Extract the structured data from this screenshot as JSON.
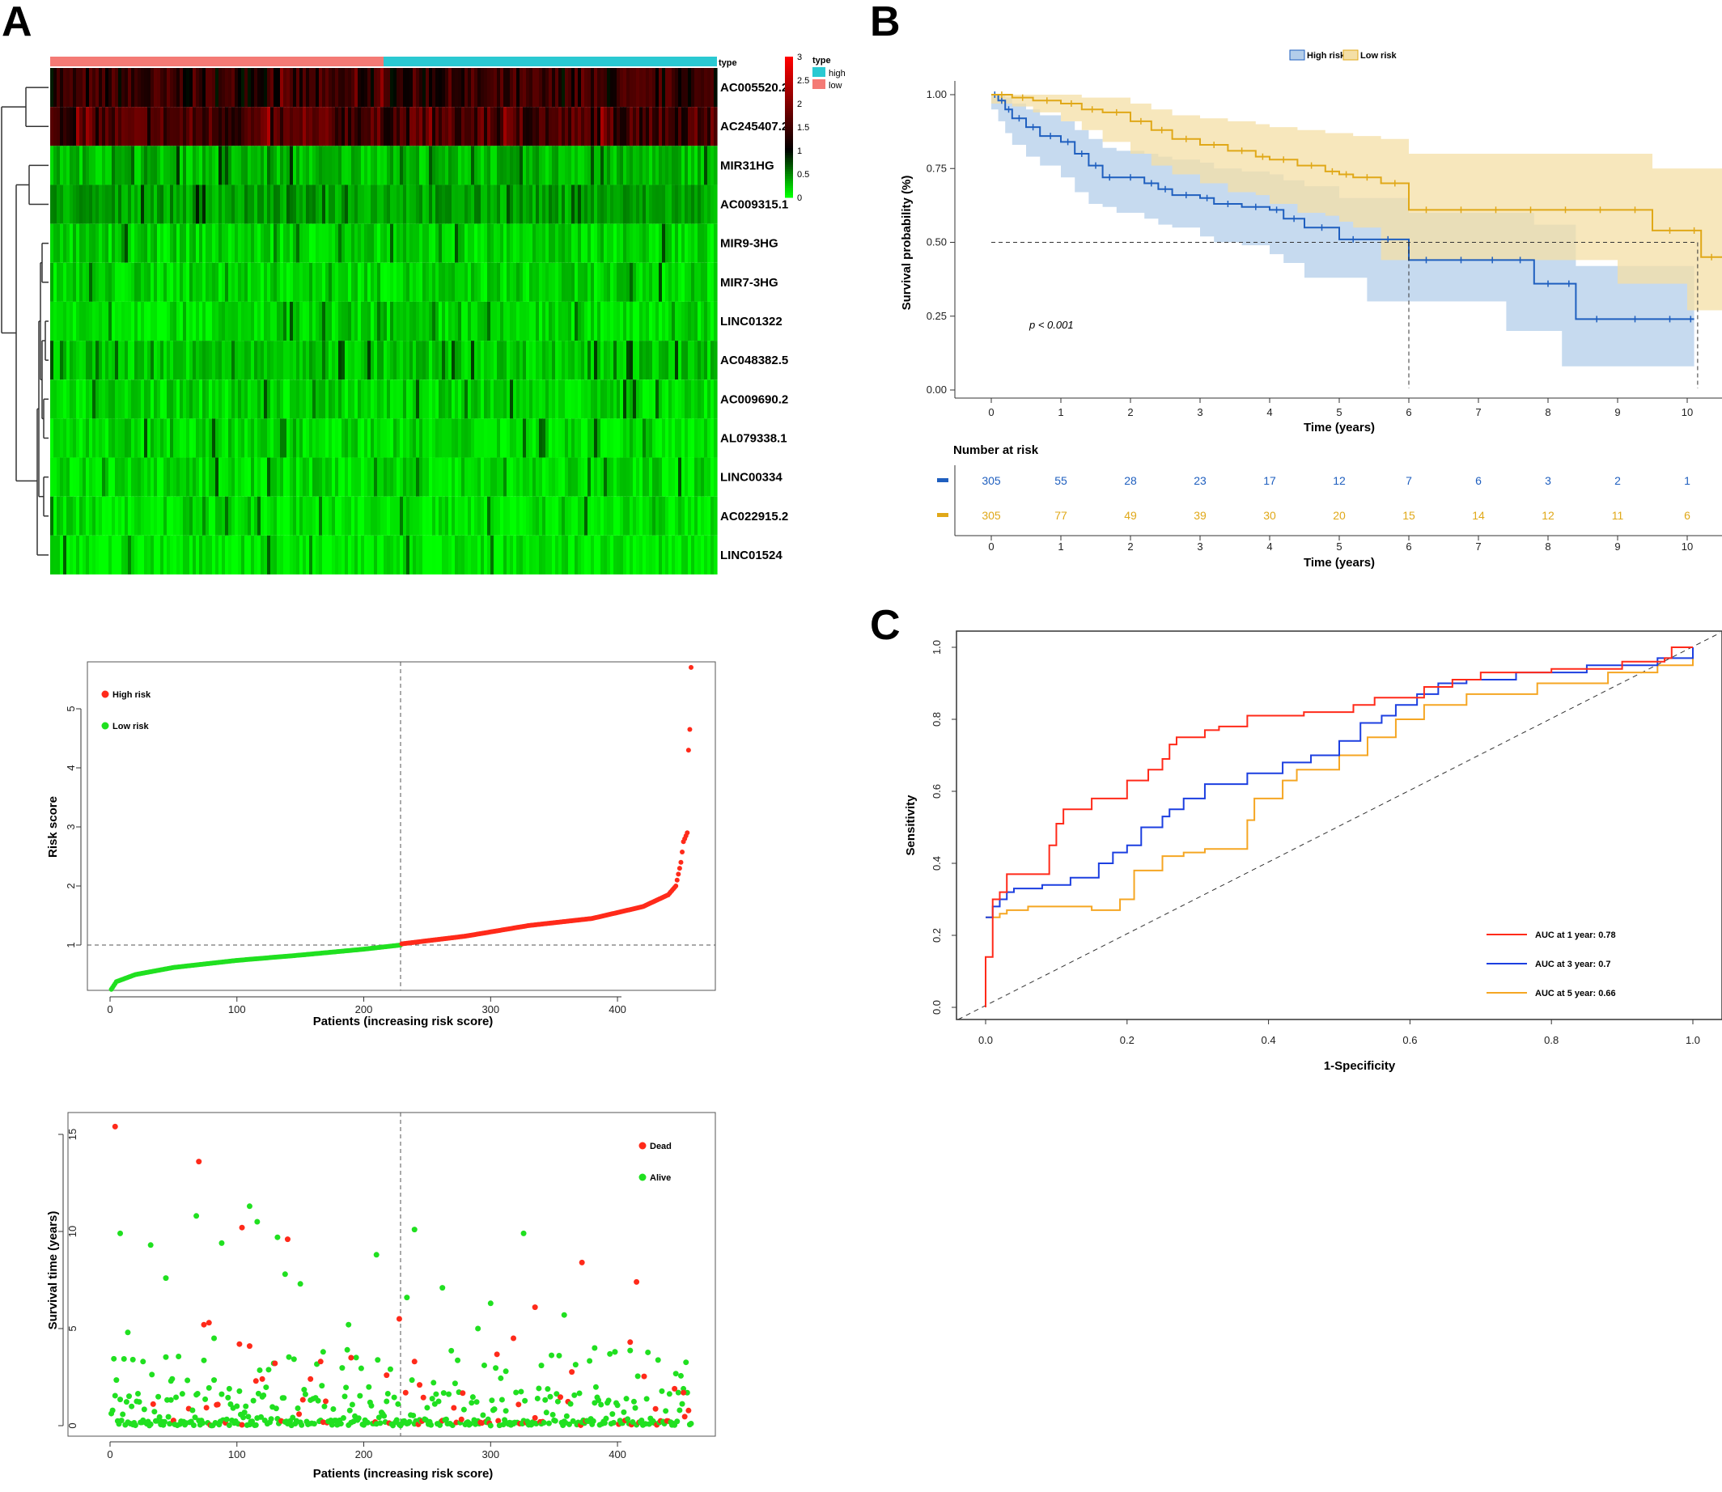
{
  "panel_letters": {
    "a": "A",
    "b": "B",
    "c": "C"
  },
  "colors": {
    "high": "#ff2a1a",
    "low": "#20e020",
    "heat_high_bar": "#f47a75",
    "heat_low_bar": "#2ac9d2",
    "km_high": "#1f5fbf",
    "km_low": "#e0a818",
    "km_high_band": "#b3cdea",
    "km_low_band": "#f4dfa6",
    "roc1": "#ff2a1a",
    "roc3": "#1c3fe0",
    "roc5": "#f5a623"
  },
  "chart_data": [
    {
      "type": "heatmap",
      "annotation_label": "type",
      "legend_title": "type",
      "legend_items": [
        "high",
        "low"
      ],
      "rows": [
        "AC005520.2",
        "AC245407.2",
        "MIR31HG",
        "AC009315.1",
        "MIR9-3HG",
        "MIR7-3HG",
        "LINC01322",
        "AC048382.5",
        "AC009690.2",
        "AL079338.1",
        "LINC00334",
        "AC022915.2",
        "LINC01524"
      ],
      "colorbar_ticks": [
        "3",
        "2.5",
        "2",
        "1.5",
        "1",
        "0.5",
        "0"
      ],
      "value_range": [
        0,
        3
      ],
      "row_mean_level": [
        1.3,
        1.5,
        0.25,
        0.35,
        0.15,
        0.15,
        0.12,
        0.2,
        0.15,
        0.12,
        0.12,
        0.08,
        0.06
      ],
      "samples_low": 230,
      "samples_high": 228
    },
    {
      "type": "line",
      "title": "",
      "legend": [
        "High risk",
        "Low risk"
      ],
      "xlabel": "Time (years)",
      "ylabel": "Survival probability (%)",
      "xlim": [
        0,
        10
      ],
      "ylim": [
        0,
        1
      ],
      "x_ticks": [
        "0",
        "1",
        "2",
        "3",
        "4",
        "5",
        "6",
        "7",
        "8",
        "9",
        "10"
      ],
      "y_ticks": [
        "0.00",
        "0.25",
        "0.50",
        "0.75",
        "1.00"
      ],
      "annotation": "p < 0.001",
      "median_line": 0.5,
      "median_times": [
        6.0,
        10.15
      ],
      "series": [
        {
          "name": "High risk",
          "x": [
            0,
            0.1,
            0.2,
            0.3,
            0.5,
            0.7,
            1.0,
            1.2,
            1.4,
            1.6,
            1.8,
            2.2,
            2.4,
            2.6,
            3.0,
            3.2,
            3.6,
            4.0,
            4.2,
            4.5,
            5.0,
            5.4,
            6.0,
            6.5,
            7.0,
            7.4,
            7.8,
            8.2,
            8.4,
            9.0,
            9.5,
            10.0,
            10.1
          ],
          "y": [
            1.0,
            0.98,
            0.95,
            0.92,
            0.89,
            0.86,
            0.84,
            0.8,
            0.76,
            0.72,
            0.72,
            0.7,
            0.68,
            0.66,
            0.65,
            0.63,
            0.62,
            0.61,
            0.58,
            0.55,
            0.51,
            0.51,
            0.44,
            0.44,
            0.44,
            0.44,
            0.36,
            0.36,
            0.24,
            0.24,
            0.24,
            0.24,
            0.24
          ],
          "band_upper": [
            1.0,
            1.0,
            0.99,
            0.97,
            0.95,
            0.93,
            0.91,
            0.88,
            0.85,
            0.82,
            0.81,
            0.8,
            0.79,
            0.78,
            0.77,
            0.75,
            0.74,
            0.73,
            0.71,
            0.69,
            0.65,
            0.65,
            0.6,
            0.6,
            0.6,
            0.6,
            0.56,
            0.56,
            0.42,
            0.42,
            0.42,
            0.42,
            0.42
          ],
          "band_lower": [
            0.98,
            0.95,
            0.91,
            0.87,
            0.83,
            0.79,
            0.76,
            0.72,
            0.67,
            0.63,
            0.62,
            0.6,
            0.58,
            0.56,
            0.55,
            0.52,
            0.5,
            0.49,
            0.46,
            0.43,
            0.38,
            0.38,
            0.3,
            0.3,
            0.3,
            0.3,
            0.2,
            0.2,
            0.08,
            0.08,
            0.08,
            0.08,
            0.08
          ]
        },
        {
          "name": "Low risk",
          "x": [
            0,
            0.3,
            0.6,
            1.0,
            1.3,
            1.6,
            2.0,
            2.3,
            2.6,
            3.0,
            3.4,
            3.8,
            4.0,
            4.4,
            4.8,
            5.0,
            5.2,
            5.6,
            6.0,
            6.5,
            7.0,
            7.5,
            8.0,
            8.5,
            9.0,
            9.5,
            10.0,
            10.2,
            10.5
          ],
          "y": [
            1.0,
            0.99,
            0.98,
            0.97,
            0.95,
            0.94,
            0.91,
            0.88,
            0.85,
            0.83,
            0.81,
            0.79,
            0.78,
            0.76,
            0.74,
            0.73,
            0.72,
            0.7,
            0.61,
            0.61,
            0.61,
            0.61,
            0.61,
            0.61,
            0.61,
            0.54,
            0.54,
            0.45,
            0.45
          ],
          "band_upper": [
            1.0,
            1.0,
            1.0,
            1.0,
            0.99,
            0.99,
            0.97,
            0.95,
            0.93,
            0.92,
            0.91,
            0.9,
            0.89,
            0.88,
            0.87,
            0.87,
            0.86,
            0.85,
            0.8,
            0.8,
            0.8,
            0.8,
            0.8,
            0.8,
            0.8,
            0.75,
            0.75,
            0.75,
            0.75
          ],
          "band_lower": [
            0.99,
            0.97,
            0.96,
            0.94,
            0.91,
            0.88,
            0.84,
            0.8,
            0.76,
            0.73,
            0.7,
            0.67,
            0.66,
            0.63,
            0.6,
            0.59,
            0.57,
            0.55,
            0.44,
            0.44,
            0.44,
            0.44,
            0.44,
            0.44,
            0.44,
            0.36,
            0.36,
            0.27,
            0.27
          ]
        }
      ],
      "risk_table": {
        "title": "Number at risk",
        "xlabel": "Time (years)",
        "high": [
          "305",
          "55",
          "28",
          "23",
          "17",
          "12",
          "7",
          "6",
          "3",
          "2",
          "1"
        ],
        "low": [
          "305",
          "77",
          "49",
          "39",
          "30",
          "20",
          "15",
          "14",
          "12",
          "11",
          "6"
        ]
      }
    },
    {
      "type": "line",
      "xlabel": "1-Specificity",
      "ylabel": "Sensitivity",
      "xlim": [
        0,
        1
      ],
      "ylim": [
        0,
        1
      ],
      "x_ticks": [
        "0.0",
        "0.2",
        "0.4",
        "0.6",
        "0.8",
        "1.0"
      ],
      "y_ticks": [
        "0.0",
        "0.2",
        "0.4",
        "0.6",
        "0.8",
        "1.0"
      ],
      "legend": [
        "AUC at 1 year: 0.78",
        "AUC at 3 year: 0.7",
        "AUC at 5 year: 0.66"
      ],
      "series": [
        {
          "name": "AUC at 1 year: 0.78",
          "x": [
            0,
            0,
            0.01,
            0.01,
            0.02,
            0.03,
            0.03,
            0.08,
            0.09,
            0.1,
            0.11,
            0.13,
            0.15,
            0.16,
            0.2,
            0.2,
            0.23,
            0.25,
            0.26,
            0.27,
            0.28,
            0.31,
            0.33,
            0.37,
            0.45,
            0.52,
            0.55,
            0.61,
            0.62,
            0.66,
            0.68,
            0.7,
            0.8,
            0.9,
            0.96,
            0.97,
            1.0
          ],
          "y": [
            0,
            0.14,
            0.14,
            0.3,
            0.32,
            0.32,
            0.37,
            0.37,
            0.45,
            0.51,
            0.55,
            0.55,
            0.58,
            0.58,
            0.6,
            0.63,
            0.66,
            0.69,
            0.73,
            0.75,
            0.75,
            0.77,
            0.78,
            0.81,
            0.82,
            0.84,
            0.86,
            0.86,
            0.89,
            0.91,
            0.91,
            0.93,
            0.94,
            0.96,
            0.97,
            1.0,
            1.0
          ]
        },
        {
          "name": "AUC at 3 year: 0.7",
          "x": [
            0,
            0.01,
            0.02,
            0.03,
            0.04,
            0.08,
            0.12,
            0.16,
            0.16,
            0.18,
            0.2,
            0.22,
            0.25,
            0.26,
            0.28,
            0.31,
            0.33,
            0.37,
            0.42,
            0.46,
            0.5,
            0.53,
            0.56,
            0.58,
            0.61,
            0.64,
            0.68,
            0.75,
            0.85,
            0.95,
            1.0
          ],
          "y": [
            0.25,
            0.28,
            0.3,
            0.32,
            0.33,
            0.34,
            0.36,
            0.36,
            0.4,
            0.43,
            0.45,
            0.5,
            0.53,
            0.55,
            0.58,
            0.62,
            0.62,
            0.65,
            0.68,
            0.7,
            0.74,
            0.79,
            0.81,
            0.84,
            0.87,
            0.9,
            0.91,
            0.93,
            0.95,
            0.97,
            1.0
          ]
        },
        {
          "name": "AUC at 5 year: 0.66",
          "x": [
            0,
            0.01,
            0.02,
            0.03,
            0.06,
            0.1,
            0.15,
            0.19,
            0.21,
            0.25,
            0.28,
            0.31,
            0.37,
            0.38,
            0.42,
            0.44,
            0.5,
            0.54,
            0.58,
            0.62,
            0.68,
            0.78,
            0.88,
            0.95,
            1.0
          ],
          "y": [
            0.25,
            0.25,
            0.26,
            0.27,
            0.28,
            0.28,
            0.27,
            0.3,
            0.38,
            0.42,
            0.43,
            0.44,
            0.52,
            0.58,
            0.63,
            0.66,
            0.7,
            0.75,
            0.8,
            0.84,
            0.87,
            0.9,
            0.93,
            0.95,
            0.97
          ]
        }
      ]
    },
    {
      "type": "scatter",
      "xlabel": "Patients (increasing risk score)",
      "ylabel": "Risk score",
      "xlim": [
        0,
        458
      ],
      "ylim": [
        0,
        5.8
      ],
      "x_ticks": [
        "0",
        "100",
        "200",
        "300",
        "400"
      ],
      "y_ticks": [
        "1",
        "2",
        "3",
        "4",
        "5"
      ],
      "legend": [
        "High risk",
        "Low risk"
      ],
      "cutoff_index": 229,
      "cutoff_value": 1.0,
      "n_patients": 458,
      "series": [
        {
          "name": "Low risk",
          "x": [
            1,
            5,
            20,
            50,
            100,
            150,
            200,
            229
          ],
          "y": [
            0.25,
            0.38,
            0.5,
            0.62,
            0.74,
            0.83,
            0.93,
            1.0
          ]
        },
        {
          "name": "High risk",
          "x": [
            230,
            280,
            330,
            380,
            420,
            440,
            446,
            450,
            452,
            455,
            456,
            457,
            458
          ],
          "y": [
            1.02,
            1.15,
            1.33,
            1.45,
            1.65,
            1.85,
            2.0,
            2.4,
            2.75,
            2.9,
            4.3,
            4.65,
            5.7
          ]
        }
      ]
    },
    {
      "type": "scatter",
      "xlabel": "Patients (increasing risk score)",
      "ylabel": "Survival time (years)",
      "xlim": [
        0,
        458
      ],
      "ylim": [
        0,
        15.5
      ],
      "x_ticks": [
        "0",
        "100",
        "200",
        "300",
        "400"
      ],
      "y_ticks": [
        "0",
        "5",
        "10",
        "15"
      ],
      "legend": [
        "Dead",
        "Alive"
      ],
      "cutoff_index": 229,
      "series": [
        {
          "name": "Dead",
          "x": [
            4,
            70,
            74,
            78,
            102,
            104,
            110,
            115,
            120,
            140,
            158,
            166,
            190,
            218,
            228,
            240,
            244,
            318,
            335,
            372,
            410,
            415,
            445,
            452
          ],
          "y": [
            15.4,
            13.6,
            5.2,
            5.3,
            4.2,
            10.2,
            4.1,
            2.3,
            2.4,
            9.6,
            2.4,
            3.3,
            3.5,
            2.6,
            5.5,
            3.3,
            2.1,
            4.5,
            6.1,
            8.4,
            4.3,
            7.4,
            1.9,
            1.7
          ]
        },
        {
          "name": "Alive",
          "x": [
            8,
            14,
            18,
            26,
            32,
            44,
            48,
            68,
            82,
            88,
            94,
            110,
            116,
            132,
            138,
            150,
            168,
            188,
            210,
            234,
            240,
            262,
            290,
            300,
            312,
            326,
            340,
            358,
            382,
            398
          ],
          "y": [
            9.9,
            4.8,
            3.4,
            3.3,
            9.3,
            7.6,
            2.3,
            10.8,
            4.5,
            9.4,
            1.9,
            11.3,
            10.5,
            9.7,
            7.8,
            7.3,
            3.8,
            5.2,
            8.8,
            6.6,
            10.1,
            7.1,
            5.0,
            6.3,
            2.8,
            9.9,
            3.1,
            5.7,
            4.0,
            3.8
          ]
        }
      ]
    }
  ]
}
